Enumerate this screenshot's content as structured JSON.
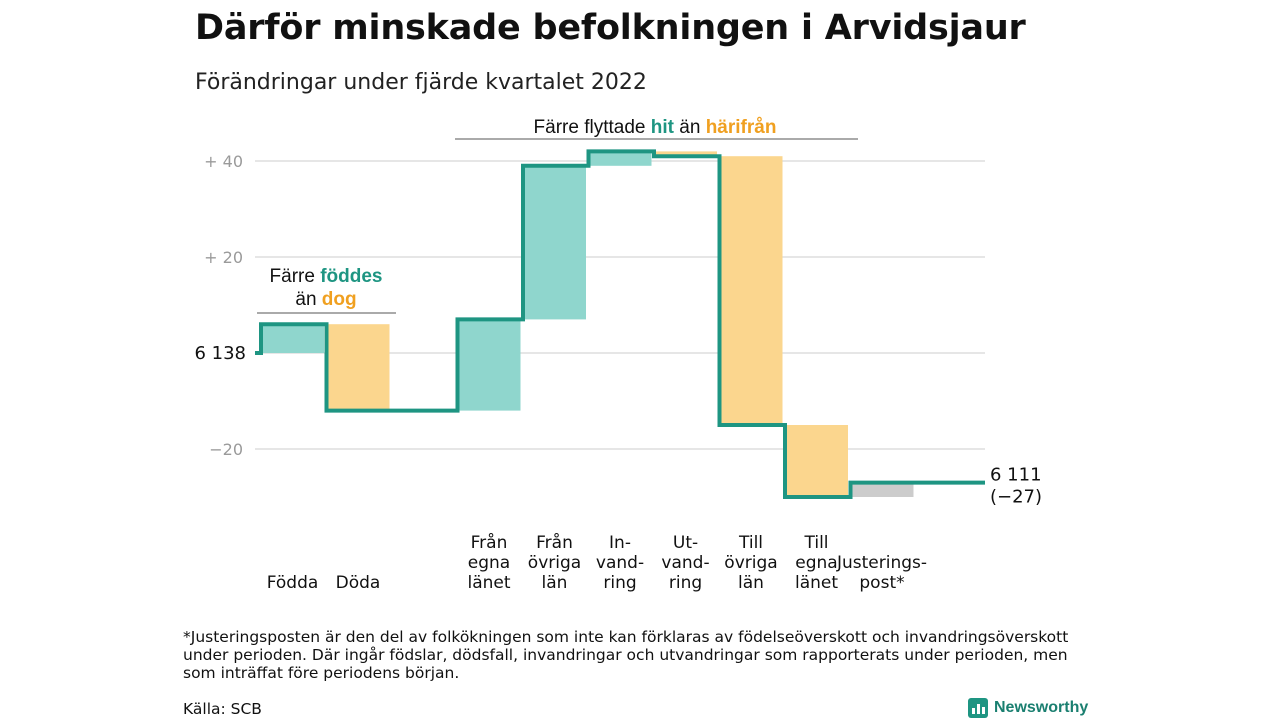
{
  "title": "Därför minskade befolkningen i Arvidsjaur",
  "subtitle": "Förändringar under fjärde kvartalet 2022",
  "chart_data": {
    "type": "waterfall",
    "start_label": "6 138",
    "start_value": 6138,
    "end_labels": [
      "6 111",
      "(−27)"
    ],
    "end_value": 6111,
    "net_change": -27,
    "yticks": [
      {
        "value": 40,
        "label": "+ 40"
      },
      {
        "value": 20,
        "label": "+ 20"
      },
      {
        "value": 0,
        "label": ""
      },
      {
        "value": -20,
        "label": "−20"
      }
    ],
    "ylim": [
      -33,
      44
    ],
    "steps": [
      {
        "category": [
          "Födda"
        ],
        "value": 6,
        "kind": "in"
      },
      {
        "category": [
          "Döda"
        ],
        "value": -18,
        "kind": "out"
      },
      {
        "category": [
          "",
          "",
          ""
        ],
        "value": 0,
        "kind": "none"
      },
      {
        "category": [
          "Från",
          "egna",
          "länet"
        ],
        "value": 19,
        "kind": "in"
      },
      {
        "category": [
          "Från",
          "övriga",
          "län"
        ],
        "value": 32,
        "kind": "in"
      },
      {
        "category": [
          "In-",
          "vand-",
          "ring"
        ],
        "value": 3,
        "kind": "in"
      },
      {
        "category": [
          "Ut-",
          "vand-",
          "ring"
        ],
        "value": -1,
        "kind": "out"
      },
      {
        "category": [
          "Till",
          "övriga",
          "län"
        ],
        "value": -56,
        "kind": "out"
      },
      {
        "category": [
          "Till",
          "egna",
          "länet"
        ],
        "value": -15,
        "kind": "out"
      },
      {
        "category": [
          "Justerings-",
          "post*"
        ],
        "value": 3,
        "kind": "adj"
      }
    ],
    "annotations": [
      {
        "parts": [
          {
            "text": "Färre ",
            "style": "plain"
          },
          {
            "text": "föddes",
            "style": "in"
          }
        ],
        "line2": [
          {
            "text": "än ",
            "style": "plain"
          },
          {
            "text": "dog",
            "style": "out"
          }
        ]
      },
      {
        "parts": [
          {
            "text": "Färre flyttade ",
            "style": "plain"
          },
          {
            "text": "hit",
            "style": "in"
          },
          {
            "text": " än ",
            "style": "plain"
          },
          {
            "text": "härifrån",
            "style": "out"
          }
        ],
        "line2": []
      }
    ],
    "colors": {
      "in": "#8fd6cd",
      "out": "#fbd68e",
      "adj": "#cccccc",
      "line": "#1e9582",
      "in_text": "#1e9582",
      "out_text": "#f0a020",
      "grid": "#dddddd",
      "tick": "#9a9a9a"
    }
  },
  "footnote": "*Justeringsposten är den del av folkökningen som inte kan förklaras av födelseöverskott och invandringsöverskott under perioden. Där ingår födslar, dödsfall, invandringar och utvandringar som rapporterats under perioden, men som inträffat före periodens början.",
  "source": "Källa: SCB",
  "brand": {
    "name": "Newsworthy",
    "icon": "bar-chart-icon"
  }
}
